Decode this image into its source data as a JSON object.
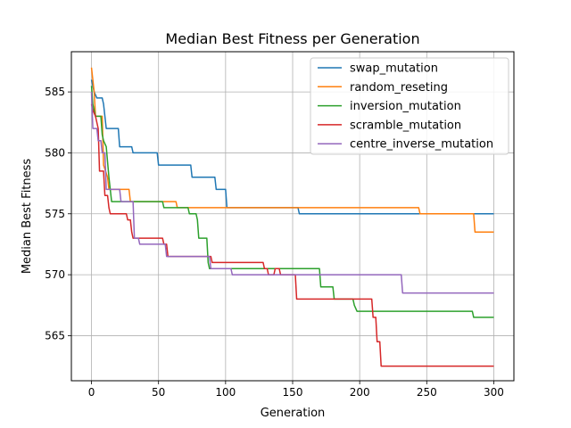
{
  "chart_data": {
    "type": "line",
    "title": "Median Best Fitness per Generation",
    "xlabel": "Generation",
    "ylabel": "Median Best Fitness",
    "xlim": [
      -15,
      315
    ],
    "ylim": [
      561.3,
      588.3
    ],
    "xticks": [
      0,
      50,
      100,
      150,
      200,
      250,
      300
    ],
    "yticks": [
      565,
      570,
      575,
      580,
      585
    ],
    "grid": true,
    "legend_position": "upper right",
    "series": [
      {
        "name": "swap_mutation",
        "color": "#1f77b4",
        "points": [
          [
            0,
            586
          ],
          [
            1,
            585.5
          ],
          [
            2,
            585
          ],
          [
            4,
            584.5
          ],
          [
            8,
            584.5
          ],
          [
            9,
            584
          ],
          [
            10,
            583
          ],
          [
            11,
            582
          ],
          [
            20,
            582
          ],
          [
            21,
            580.5
          ],
          [
            30,
            580.5
          ],
          [
            31,
            580
          ],
          [
            49,
            580
          ],
          [
            50,
            579
          ],
          [
            74,
            579
          ],
          [
            75,
            578
          ],
          [
            92,
            578
          ],
          [
            93,
            577
          ],
          [
            100,
            577
          ],
          [
            101,
            575.5
          ],
          [
            154,
            575.5
          ],
          [
            155,
            575
          ],
          [
            300,
            575
          ]
        ]
      },
      {
        "name": "random_reseting",
        "color": "#ff7f0e",
        "points": [
          [
            0,
            587
          ],
          [
            1,
            586
          ],
          [
            2,
            585
          ],
          [
            3,
            583
          ],
          [
            8,
            583
          ],
          [
            9,
            579
          ],
          [
            12,
            578
          ],
          [
            13,
            577
          ],
          [
            28,
            577
          ],
          [
            29,
            576
          ],
          [
            63,
            576
          ],
          [
            64,
            575.5
          ],
          [
            244,
            575.5
          ],
          [
            245,
            575
          ],
          [
            285,
            575
          ],
          [
            286,
            573.5
          ],
          [
            300,
            573.5
          ]
        ]
      },
      {
        "name": "inversion_mutation",
        "color": "#2ca02c",
        "points": [
          [
            0,
            585.5
          ],
          [
            1,
            584
          ],
          [
            3,
            583
          ],
          [
            7,
            583
          ],
          [
            8,
            581.5
          ],
          [
            9,
            581
          ],
          [
            11,
            580.5
          ],
          [
            13,
            578
          ],
          [
            14,
            577
          ],
          [
            15,
            576
          ],
          [
            53,
            576
          ],
          [
            54,
            575.5
          ],
          [
            72,
            575.5
          ],
          [
            73,
            575
          ],
          [
            78,
            575
          ],
          [
            79,
            574.5
          ],
          [
            80,
            573
          ],
          [
            86,
            573
          ],
          [
            87,
            571
          ],
          [
            88,
            570.5
          ],
          [
            170,
            570.5
          ],
          [
            171,
            569
          ],
          [
            180,
            569
          ],
          [
            181,
            568
          ],
          [
            195,
            568
          ],
          [
            196,
            567.5
          ],
          [
            198,
            567
          ],
          [
            284,
            567
          ],
          [
            285,
            566.5
          ],
          [
            300,
            566.5
          ]
        ]
      },
      {
        "name": "scramble_mutation",
        "color": "#d62728",
        "points": [
          [
            0,
            584
          ],
          [
            1,
            583.5
          ],
          [
            3,
            583
          ],
          [
            5,
            582
          ],
          [
            6,
            578.5
          ],
          [
            9,
            578.5
          ],
          [
            10,
            576.5
          ],
          [
            12,
            576.5
          ],
          [
            13,
            575.5
          ],
          [
            14,
            575
          ],
          [
            26,
            575
          ],
          [
            27,
            574.5
          ],
          [
            29,
            574.5
          ],
          [
            30,
            573.5
          ],
          [
            31,
            573
          ],
          [
            53,
            573
          ],
          [
            54,
            572.5
          ],
          [
            56,
            572.5
          ],
          [
            57,
            571.5
          ],
          [
            89,
            571.5
          ],
          [
            90,
            571
          ],
          [
            128,
            571
          ],
          [
            129,
            570.5
          ],
          [
            131,
            570.5
          ],
          [
            132,
            570
          ],
          [
            136,
            570
          ],
          [
            137,
            570.5
          ],
          [
            140,
            570.5
          ],
          [
            141,
            570
          ],
          [
            152,
            570
          ],
          [
            153,
            568
          ],
          [
            209,
            568
          ],
          [
            210,
            566.5
          ],
          [
            212,
            566.5
          ],
          [
            213,
            564.5
          ],
          [
            215,
            564.5
          ],
          [
            216,
            562.5
          ],
          [
            300,
            562.5
          ]
        ]
      },
      {
        "name": "centre_inverse_mutation",
        "color": "#9467bd",
        "points": [
          [
            0,
            585
          ],
          [
            1,
            582
          ],
          [
            4,
            582
          ],
          [
            5,
            581
          ],
          [
            7,
            581
          ],
          [
            8,
            580
          ],
          [
            10,
            580
          ],
          [
            11,
            577
          ],
          [
            21,
            577
          ],
          [
            22,
            576
          ],
          [
            31,
            576
          ],
          [
            32,
            573
          ],
          [
            35,
            573
          ],
          [
            36,
            572.5
          ],
          [
            55,
            572.5
          ],
          [
            56,
            571.5
          ],
          [
            88,
            571.5
          ],
          [
            89,
            570.5
          ],
          [
            104,
            570.5
          ],
          [
            105,
            570
          ],
          [
            231,
            570
          ],
          [
            232,
            568.5
          ],
          [
            300,
            568.5
          ]
        ]
      }
    ]
  }
}
